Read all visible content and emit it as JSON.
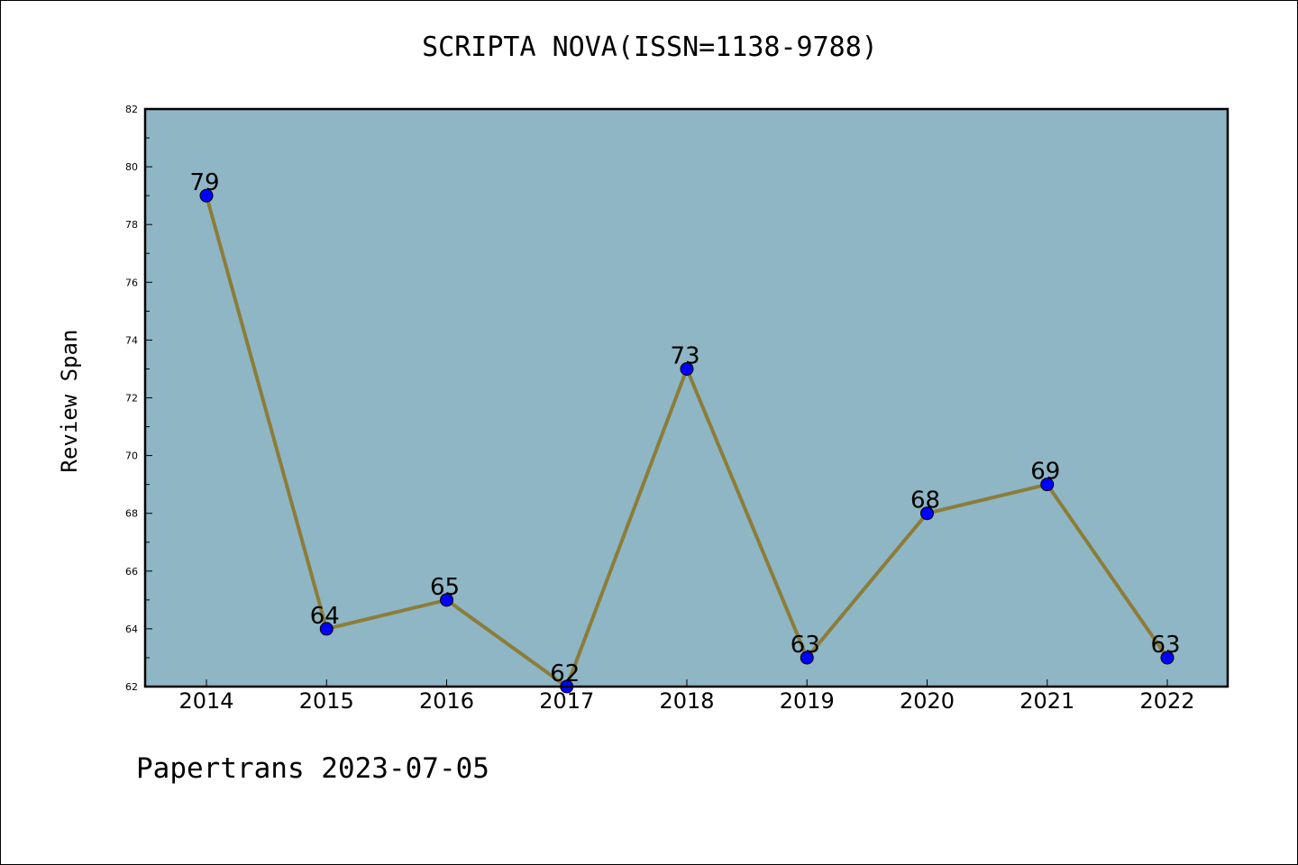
{
  "chart_data": {
    "type": "line",
    "title": "SCRIPTA NOVA(ISSN=1138-9788)",
    "xlabel": "",
    "ylabel": "Review Span",
    "categories": [
      "2014",
      "2015",
      "2016",
      "2017",
      "2018",
      "2019",
      "2020",
      "2021",
      "2022"
    ],
    "series": [
      {
        "name": "Review Span",
        "values": [
          79,
          64,
          65,
          62,
          73,
          63,
          68,
          69,
          63
        ]
      }
    ],
    "ylim": [
      62,
      82
    ],
    "yticks": [
      62,
      64,
      66,
      68,
      70,
      72,
      74,
      76,
      78,
      80,
      82
    ],
    "grid": false,
    "colors": {
      "plot_bg": "#8fb6c4",
      "line": "#8b7d39",
      "marker": "#0000ff"
    }
  },
  "footer": {
    "text": "Papertrans 2023-07-05"
  }
}
